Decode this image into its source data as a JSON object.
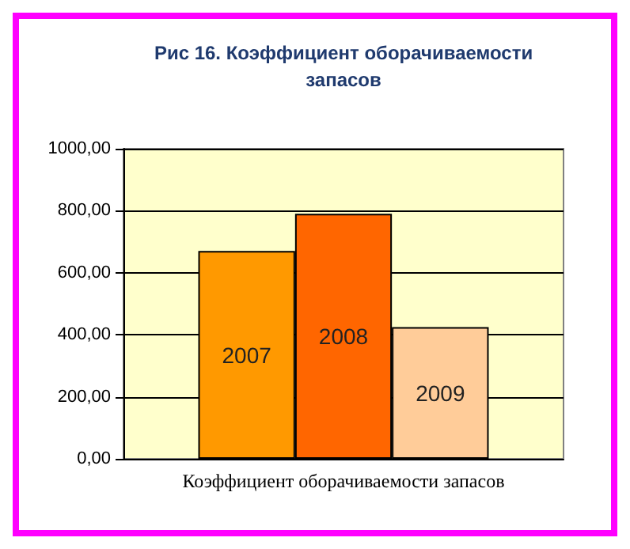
{
  "chart_data": {
    "type": "bar",
    "title": "Рис 16. Коэффициент оборачиваемости\nзапасов",
    "categories": [
      "Коэффициент оборачиваемости запасов"
    ],
    "series": [
      {
        "name": "2007",
        "color": "#ff9900",
        "values": [
          670
        ]
      },
      {
        "name": "2008",
        "color": "#ff6600",
        "values": [
          790
        ]
      },
      {
        "name": "2009",
        "color": "#ffcc99",
        "values": [
          425
        ]
      }
    ],
    "ylim": [
      0,
      1000
    ],
    "yticks": [
      {
        "value": 0,
        "label": "0,00"
      },
      {
        "value": 200,
        "label": "200,00"
      },
      {
        "value": 400,
        "label": "400,00"
      },
      {
        "value": 600,
        "label": "600,00"
      },
      {
        "value": 800,
        "label": "800,00"
      },
      {
        "value": 1000,
        "label": "1000,00"
      }
    ],
    "grid": "y",
    "legend": false
  }
}
